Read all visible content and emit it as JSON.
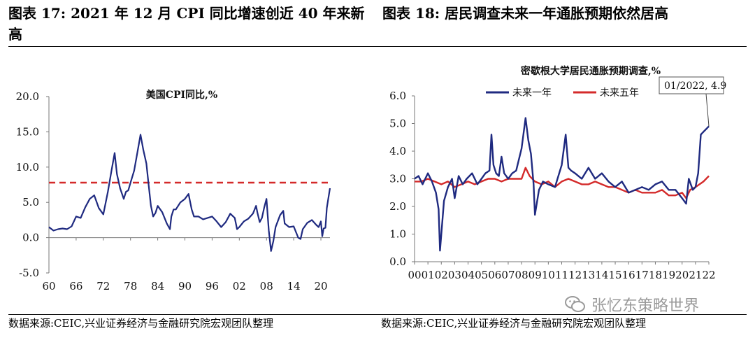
{
  "header": {
    "left_title_line1": "图表 17:  2021 年 12 月 CPI 同比增速创近 40 年来新",
    "left_title_line2": "高",
    "right_title": "图表 18:  居民调查未来一年通胀预期依然居高"
  },
  "footer": {
    "left_source": "数据来源:CEIC,兴业证券经济与金融研究院宏观团队整理",
    "right_source": "数据来源:CEIC,兴业证券经济与金融研究院宏观团队整理"
  },
  "watermark": {
    "text": "张忆东策略世界",
    "icon": "wechat-icon"
  },
  "colors": {
    "navy": "#1f2a80",
    "red": "#d42a2a"
  },
  "chart_data": [
    {
      "type": "line",
      "title": "美国CPI同比,%",
      "ylim": [
        -5,
        20
      ],
      "yticks": [
        "-5.0",
        "0.0",
        "5.0",
        "10.0",
        "15.0",
        "20.0"
      ],
      "xticks": [
        "60",
        "66",
        "72",
        "78",
        "84",
        "90",
        "96",
        "02",
        "08",
        "14",
        "20"
      ],
      "xlim": [
        1960,
        2022
      ],
      "reference_line": {
        "y": 7.8,
        "style": "dashed",
        "color": "#d42a2a"
      },
      "series": [
        {
          "color": "#1f2a80",
          "x": [
            1960,
            1961,
            1962,
            1963,
            1964,
            1965,
            1966,
            1967,
            1968,
            1969,
            1970,
            1971,
            1972,
            1973,
            1973.8,
            1974.5,
            1975,
            1975.7,
            1976.5,
            1977,
            1977.5,
            1978,
            1978.8,
            1979.5,
            1980.2,
            1980.8,
            1981.5,
            1982,
            1982.5,
            1983,
            1983.5,
            1984,
            1985,
            1986,
            1986.7,
            1987,
            1987.5,
            1988,
            1989,
            1990,
            1990.8,
            1991.5,
            1992,
            1993,
            1994,
            1995,
            1996,
            1997,
            1998,
            1999,
            2000,
            2001,
            2001.5,
            2002,
            2003,
            2004,
            2005,
            2005.7,
            2006,
            2006.5,
            2007,
            2007.5,
            2008,
            2008.5,
            2009,
            2009.5,
            2010,
            2011,
            2011.7,
            2012,
            2013,
            2014,
            2015,
            2015.5,
            2016,
            2017,
            2018,
            2019,
            2019.5,
            2020,
            2020.3,
            2020.6,
            2021,
            2021.3,
            2021.6,
            2022
          ],
          "y": [
            1.5,
            1.0,
            1.2,
            1.3,
            1.2,
            1.6,
            3.0,
            2.8,
            4.3,
            5.5,
            6.0,
            4.2,
            3.3,
            6.5,
            9.5,
            12.0,
            9.0,
            7.0,
            5.5,
            6.5,
            6.7,
            7.8,
            9.5,
            12.0,
            14.6,
            12.5,
            10.5,
            7.5,
            4.5,
            3.0,
            3.5,
            4.5,
            3.6,
            2.0,
            1.2,
            3.0,
            4.0,
            4.0,
            5.0,
            5.5,
            6.2,
            4.0,
            3.0,
            3.0,
            2.6,
            2.8,
            3.0,
            2.3,
            1.5,
            2.2,
            3.4,
            2.8,
            1.2,
            1.5,
            2.3,
            2.7,
            3.4,
            4.5,
            3.5,
            2.2,
            2.8,
            4.3,
            5.5,
            1.0,
            -1.9,
            -0.5,
            1.5,
            3.2,
            3.8,
            2.0,
            1.5,
            1.6,
            0.0,
            -0.2,
            1.2,
            2.1,
            2.5,
            1.8,
            1.5,
            2.3,
            0.2,
            1.3,
            1.4,
            4.2,
            5.4,
            7.0
          ]
        }
      ]
    },
    {
      "type": "line",
      "title": "密歇根大学居民通胀预期调查,%",
      "ylim": [
        0,
        6
      ],
      "yticks": [
        "0.0",
        "1.0",
        "2.0",
        "3.0",
        "4.0",
        "5.0",
        "6.0"
      ],
      "xticks": [
        "00",
        "01",
        "02",
        "03",
        "04",
        "05",
        "06",
        "07",
        "08",
        "09",
        "10",
        "11",
        "12",
        "13",
        "14",
        "15",
        "16",
        "17",
        "18",
        "19",
        "20",
        "21",
        "22"
      ],
      "xlim": [
        2000,
        2022
      ],
      "legend": {
        "placement": "top"
      },
      "annotation": {
        "text": "01/2022, 4.9",
        "x": 2022,
        "y": 4.9
      },
      "series": [
        {
          "name": "未来一年",
          "color": "#1f2a80",
          "x": [
            2000,
            2000.3,
            2000.6,
            2001,
            2001.3,
            2001.6,
            2001.8,
            2001.9,
            2002,
            2002.2,
            2002.5,
            2002.8,
            2003,
            2003.3,
            2003.6,
            2003.9,
            2004.3,
            2004.7,
            2005,
            2005.3,
            2005.6,
            2005.75,
            2005.9,
            2006.1,
            2006.3,
            2006.5,
            2006.7,
            2007,
            2007.3,
            2007.6,
            2008,
            2008.3,
            2008.5,
            2008.7,
            2008.9,
            2009,
            2009.3,
            2009.6,
            2010,
            2010.5,
            2011,
            2011.3,
            2011.5,
            2011.7,
            2012,
            2012.5,
            2013,
            2013.5,
            2014,
            2014.5,
            2015,
            2015.5,
            2016,
            2016.5,
            2017,
            2017.5,
            2018,
            2018.5,
            2019,
            2019.5,
            2020,
            2020.3,
            2020.5,
            2020.8,
            2021,
            2021.2,
            2021.4,
            2021.6,
            2021.8,
            2022
          ],
          "y": [
            3.0,
            3.1,
            2.8,
            3.2,
            2.9,
            2.5,
            1.9,
            0.4,
            1.0,
            2.2,
            2.7,
            3.0,
            2.3,
            3.1,
            2.8,
            3.0,
            3.2,
            2.8,
            3.0,
            3.2,
            3.3,
            4.6,
            3.5,
            3.2,
            3.1,
            3.8,
            3.2,
            3.0,
            3.2,
            3.3,
            4.1,
            5.2,
            4.4,
            3.9,
            2.8,
            1.7,
            2.6,
            2.9,
            2.8,
            2.7,
            3.5,
            4.6,
            3.4,
            3.3,
            3.2,
            3.0,
            3.4,
            3.0,
            3.2,
            2.9,
            2.7,
            2.9,
            2.5,
            2.6,
            2.7,
            2.6,
            2.8,
            2.9,
            2.6,
            2.6,
            2.3,
            2.1,
            3.0,
            2.6,
            2.7,
            3.2,
            4.6,
            4.7,
            4.8,
            4.9
          ]
        },
        {
          "name": "未来五年",
          "color": "#d42a2a",
          "x": [
            2000,
            2000.5,
            2001,
            2001.5,
            2002,
            2002.5,
            2003,
            2003.5,
            2004,
            2004.5,
            2005,
            2005.5,
            2006,
            2006.5,
            2007,
            2007.5,
            2008,
            2008.3,
            2008.6,
            2009,
            2009.5,
            2010,
            2010.5,
            2011,
            2011.5,
            2012,
            2012.5,
            2013,
            2013.5,
            2014,
            2014.5,
            2015,
            2015.5,
            2016,
            2016.5,
            2017,
            2017.5,
            2018,
            2018.5,
            2019,
            2019.5,
            2020,
            2020.3,
            2020.6,
            2021,
            2021.3,
            2021.6,
            2022
          ],
          "y": [
            2.9,
            2.9,
            3.0,
            2.9,
            2.8,
            2.9,
            2.7,
            2.8,
            2.9,
            2.8,
            2.9,
            3.0,
            3.0,
            2.9,
            3.0,
            3.0,
            3.0,
            3.4,
            3.1,
            2.9,
            2.8,
            2.9,
            2.7,
            2.9,
            3.0,
            2.9,
            2.8,
            2.8,
            2.9,
            2.8,
            2.7,
            2.7,
            2.6,
            2.5,
            2.6,
            2.5,
            2.5,
            2.5,
            2.6,
            2.4,
            2.4,
            2.5,
            2.3,
            2.6,
            2.7,
            2.8,
            2.9,
            3.1
          ]
        }
      ]
    }
  ]
}
